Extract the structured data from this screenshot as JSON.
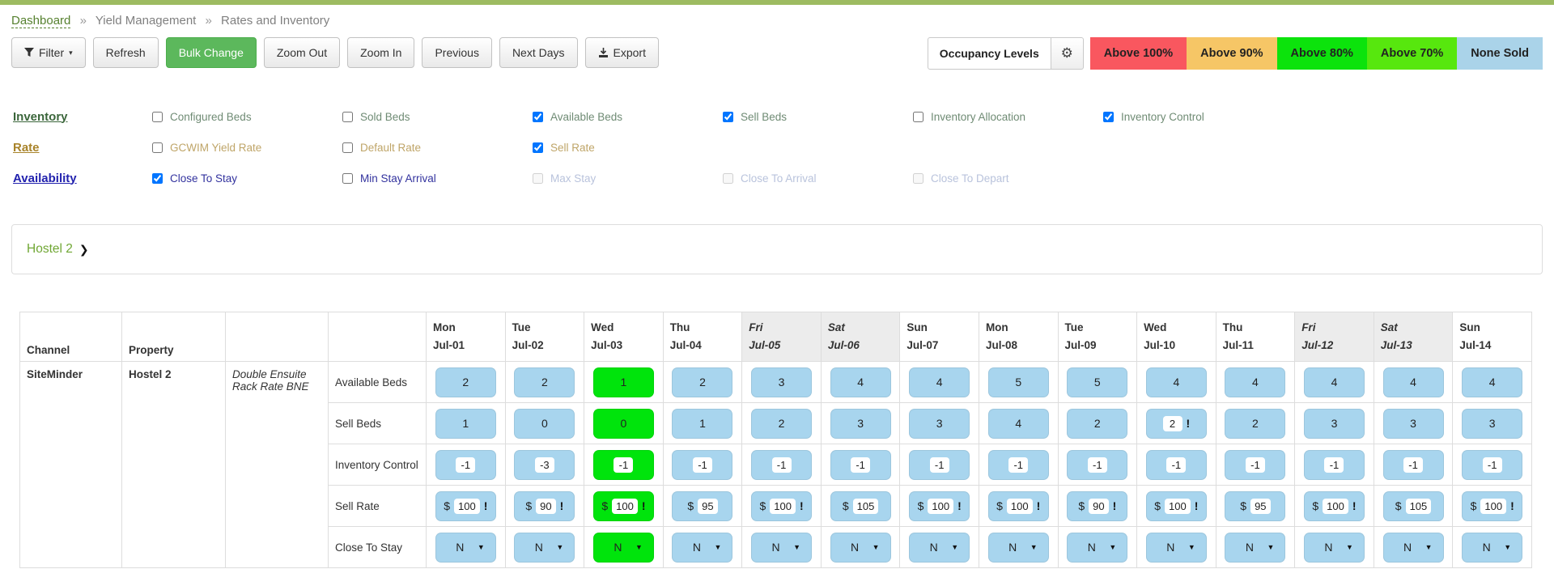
{
  "breadcrumb": {
    "separator": "»",
    "items": [
      "Dashboard",
      "Yield Management",
      "Rates and Inventory"
    ]
  },
  "toolbar": {
    "filter": "Filter",
    "refresh": "Refresh",
    "bulk_change": "Bulk Change",
    "zoom_out": "Zoom Out",
    "zoom_in": "Zoom In",
    "previous": "Previous",
    "next_days": "Next Days",
    "export": "Export"
  },
  "occupancy": {
    "label": "Occupancy Levels",
    "gear_icon": "⚙",
    "levels": [
      {
        "label": "Above 100%",
        "color": "#F9575F"
      },
      {
        "label": "Above 90%",
        "color": "#F6C666"
      },
      {
        "label": "Above 80%",
        "color": "#0CE30C"
      },
      {
        "label": "Above 70%",
        "color": "#57E70E"
      },
      {
        "label": "None Sold",
        "color": "#AAD3E9"
      }
    ]
  },
  "filters": {
    "groups": [
      {
        "key": "inventory",
        "label": "Inventory",
        "items": [
          {
            "label": "Configured Beds",
            "checked": false,
            "disabled": false
          },
          {
            "label": "Sold Beds",
            "checked": false,
            "disabled": false
          },
          {
            "label": "Available Beds",
            "checked": true,
            "disabled": false
          },
          {
            "label": "Sell Beds",
            "checked": true,
            "disabled": false
          },
          {
            "label": "Inventory Allocation",
            "checked": false,
            "disabled": false
          },
          {
            "label": "Inventory Control",
            "checked": true,
            "disabled": false
          }
        ]
      },
      {
        "key": "rate",
        "label": "Rate",
        "items": [
          {
            "label": "GCWIM Yield Rate",
            "checked": false,
            "disabled": false
          },
          {
            "label": "Default Rate",
            "checked": false,
            "disabled": false
          },
          {
            "label": "Sell Rate",
            "checked": true,
            "disabled": false
          }
        ]
      },
      {
        "key": "availability",
        "label": "Availability",
        "items": [
          {
            "label": "Close To Stay",
            "checked": true,
            "disabled": false
          },
          {
            "label": "Min Stay Arrival",
            "checked": false,
            "disabled": false
          },
          {
            "label": "Max Stay",
            "checked": false,
            "disabled": true
          },
          {
            "label": "Close To Arrival",
            "checked": false,
            "disabled": true
          },
          {
            "label": "Close To Depart",
            "checked": false,
            "disabled": true
          }
        ]
      }
    ]
  },
  "property_panel": {
    "title": "Hostel 2",
    "chevron_icon": "❯"
  },
  "table": {
    "currency": "$",
    "warn_symbol": "!",
    "caret_icon": "▼",
    "headers": {
      "channel": "Channel",
      "property": "Property"
    },
    "days": [
      {
        "dow": "Mon",
        "date": "Jul-01",
        "weekend": false
      },
      {
        "dow": "Tue",
        "date": "Jul-02",
        "weekend": false
      },
      {
        "dow": "Wed",
        "date": "Jul-03",
        "weekend": false
      },
      {
        "dow": "Thu",
        "date": "Jul-04",
        "weekend": false
      },
      {
        "dow": "Fri",
        "date": "Jul-05",
        "weekend": true
      },
      {
        "dow": "Sat",
        "date": "Jul-06",
        "weekend": true
      },
      {
        "dow": "Sun",
        "date": "Jul-07",
        "weekend": false
      },
      {
        "dow": "Mon",
        "date": "Jul-08",
        "weekend": false
      },
      {
        "dow": "Tue",
        "date": "Jul-09",
        "weekend": false
      },
      {
        "dow": "Wed",
        "date": "Jul-10",
        "weekend": false
      },
      {
        "dow": "Thu",
        "date": "Jul-11",
        "weekend": false
      },
      {
        "dow": "Fri",
        "date": "Jul-12",
        "weekend": true
      },
      {
        "dow": "Sat",
        "date": "Jul-13",
        "weekend": true
      },
      {
        "dow": "Sun",
        "date": "Jul-14",
        "weekend": false
      }
    ],
    "group": {
      "channel": "SiteMinder",
      "property": "Hostel 2",
      "room": "Double Ensuite Rack Rate BNE"
    },
    "rows": [
      {
        "label": "Available Beds",
        "style": "text",
        "cells": [
          {
            "v": "2"
          },
          {
            "v": "2"
          },
          {
            "v": "1",
            "highlight": true
          },
          {
            "v": "2"
          },
          {
            "v": "3"
          },
          {
            "v": "4"
          },
          {
            "v": "4"
          },
          {
            "v": "5"
          },
          {
            "v": "5"
          },
          {
            "v": "4"
          },
          {
            "v": "4"
          },
          {
            "v": "4"
          },
          {
            "v": "4"
          },
          {
            "v": "4"
          }
        ]
      },
      {
        "label": "Sell Beds",
        "style": "text",
        "cells": [
          {
            "v": "1"
          },
          {
            "v": "0"
          },
          {
            "v": "0",
            "highlight": true
          },
          {
            "v": "1"
          },
          {
            "v": "2"
          },
          {
            "v": "3"
          },
          {
            "v": "3"
          },
          {
            "v": "4"
          },
          {
            "v": "2"
          },
          {
            "v": "2",
            "input": true,
            "warn": true
          },
          {
            "v": "2"
          },
          {
            "v": "3"
          },
          {
            "v": "3"
          },
          {
            "v": "3"
          }
        ]
      },
      {
        "label": "Inventory Control",
        "style": "input",
        "cells": [
          {
            "v": "-1"
          },
          {
            "v": "-3"
          },
          {
            "v": "-1",
            "highlight": true
          },
          {
            "v": "-1"
          },
          {
            "v": "-1"
          },
          {
            "v": "-1"
          },
          {
            "v": "-1"
          },
          {
            "v": "-1"
          },
          {
            "v": "-1"
          },
          {
            "v": "-1"
          },
          {
            "v": "-1"
          },
          {
            "v": "-1"
          },
          {
            "v": "-1"
          },
          {
            "v": "-1"
          }
        ]
      },
      {
        "label": "Sell Rate",
        "style": "rate",
        "cells": [
          {
            "v": "100",
            "warn": true
          },
          {
            "v": "90",
            "warn": true
          },
          {
            "v": "100",
            "warn": true,
            "highlight": true
          },
          {
            "v": "95"
          },
          {
            "v": "100",
            "warn": true
          },
          {
            "v": "105"
          },
          {
            "v": "100",
            "warn": true
          },
          {
            "v": "100",
            "warn": true
          },
          {
            "v": "90",
            "warn": true
          },
          {
            "v": "100",
            "warn": true
          },
          {
            "v": "95"
          },
          {
            "v": "100",
            "warn": true
          },
          {
            "v": "105"
          },
          {
            "v": "100",
            "warn": true
          }
        ]
      },
      {
        "label": "Close To Stay",
        "style": "select",
        "cells": [
          {
            "v": "N"
          },
          {
            "v": "N"
          },
          {
            "v": "N",
            "highlight": true
          },
          {
            "v": "N"
          },
          {
            "v": "N"
          },
          {
            "v": "N"
          },
          {
            "v": "N"
          },
          {
            "v": "N"
          },
          {
            "v": "N"
          },
          {
            "v": "N"
          },
          {
            "v": "N"
          },
          {
            "v": "N"
          },
          {
            "v": "N"
          },
          {
            "v": "N"
          }
        ]
      }
    ]
  },
  "colors": {
    "accent_bar": "#9DBB61",
    "bulk_change_green": "#5CB85C",
    "cell_blue": "#A8D5EE",
    "cell_green": "#00E40C",
    "weekend_header_bg": "#ECECEC",
    "legend_red": "#F9575F",
    "legend_orange": "#F6C666",
    "legend_green_80": "#0CE30C",
    "legend_green_70": "#57E70E",
    "legend_none_sold_blue": "#AAD3E9"
  }
}
